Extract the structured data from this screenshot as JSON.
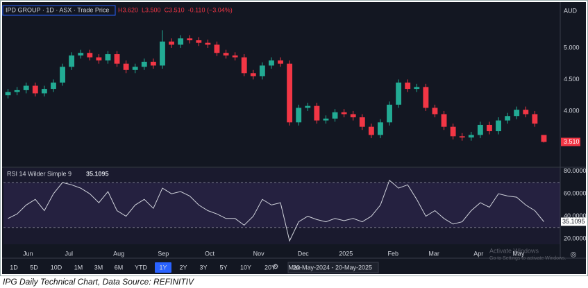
{
  "chart_data": [
    {
      "type": "candlestick",
      "title": "IPD GROUP · 1D · ASX · Trade Price",
      "ohlc_labels": [
        "H3.620",
        "L3.500",
        "C3.510",
        "-0.110 (−3.04%)"
      ],
      "currency": "AUD",
      "last_label": "3.510",
      "up_color": "#22ab94",
      "down_color": "#f23645",
      "open": [
        4.25,
        4.3,
        4.33,
        4.4,
        4.28,
        4.35,
        4.45,
        4.7,
        4.88,
        4.92,
        4.85,
        4.8,
        4.9,
        4.75,
        4.65,
        4.7,
        4.78,
        4.72,
        5.1,
        5.05,
        5.15,
        5.12,
        5.08,
        5.05,
        4.92,
        4.88,
        4.85,
        4.6,
        4.55,
        4.72,
        4.8,
        4.75,
        3.82,
        4.05,
        4.08,
        3.85,
        3.88,
        3.98,
        3.95,
        3.9,
        3.75,
        3.62,
        3.82,
        4.1,
        4.45,
        4.35,
        4.38,
        4.05,
        3.95,
        3.75,
        3.6,
        3.58,
        3.62,
        3.78,
        3.68,
        3.85,
        3.92,
        4.02,
        3.95,
        3.62
      ],
      "high": [
        4.35,
        4.38,
        4.45,
        4.45,
        4.4,
        4.5,
        4.75,
        4.93,
        4.97,
        4.97,
        4.9,
        4.95,
        4.95,
        4.8,
        4.75,
        4.83,
        4.83,
        5.28,
        5.15,
        5.2,
        5.2,
        5.17,
        5.13,
        5.1,
        4.97,
        4.93,
        4.9,
        4.65,
        4.77,
        4.85,
        4.85,
        4.8,
        4.1,
        4.13,
        4.13,
        3.93,
        4.03,
        4.03,
        4.0,
        3.95,
        3.8,
        3.87,
        4.15,
        4.5,
        4.5,
        4.43,
        4.43,
        4.1,
        4.0,
        3.8,
        3.65,
        3.67,
        3.83,
        3.83,
        3.9,
        3.97,
        4.07,
        4.07,
        4.0,
        3.62
      ],
      "low": [
        4.2,
        4.25,
        4.28,
        4.23,
        4.23,
        4.3,
        4.4,
        4.65,
        4.83,
        4.8,
        4.75,
        4.75,
        4.7,
        4.6,
        4.6,
        4.65,
        4.67,
        4.67,
        5.0,
        5.0,
        5.07,
        5.03,
        5.0,
        4.87,
        4.83,
        4.8,
        4.55,
        4.5,
        4.5,
        4.67,
        4.7,
        3.77,
        3.77,
        4.0,
        3.8,
        3.8,
        3.83,
        3.9,
        3.85,
        3.7,
        3.57,
        3.57,
        3.77,
        4.05,
        4.3,
        4.3,
        4.0,
        3.9,
        3.7,
        3.55,
        3.53,
        3.53,
        3.57,
        3.63,
        3.63,
        3.8,
        3.87,
        3.9,
        3.75,
        3.5
      ],
      "close": [
        4.3,
        4.33,
        4.4,
        4.28,
        4.35,
        4.45,
        4.7,
        4.88,
        4.92,
        4.85,
        4.8,
        4.9,
        4.75,
        4.65,
        4.7,
        4.78,
        4.72,
        5.1,
        5.05,
        5.15,
        5.12,
        5.08,
        5.05,
        4.92,
        4.88,
        4.85,
        4.6,
        4.55,
        4.72,
        4.8,
        4.75,
        3.82,
        4.05,
        4.08,
        3.85,
        3.88,
        3.98,
        3.95,
        3.9,
        3.75,
        3.62,
        3.82,
        4.1,
        4.45,
        4.35,
        4.38,
        4.05,
        3.95,
        3.75,
        3.6,
        3.58,
        3.62,
        3.78,
        3.68,
        3.85,
        3.92,
        4.02,
        3.95,
        3.8,
        3.51
      ],
      "ylim": [
        3.12,
        5.67
      ],
      "yticks": [
        {
          "value": 4,
          "label": "4.000"
        },
        {
          "value": 4.5,
          "label": "4.500"
        },
        {
          "value": 5,
          "label": "5.000"
        }
      ],
      "xlim": [
        -0.5,
        59.5
      ],
      "xticks": [
        {
          "value": 2.2,
          "label": "Jun"
        },
        {
          "value": 6.7,
          "label": "Jul"
        },
        {
          "value": 12.2,
          "label": "Aug"
        },
        {
          "value": 17.1,
          "label": "Sep"
        },
        {
          "value": 22.2,
          "label": "Oct"
        },
        {
          "value": 27.6,
          "label": "Nov"
        },
        {
          "value": 32.5,
          "label": "Dec"
        },
        {
          "value": 37.2,
          "label": "2025"
        },
        {
          "value": 42.4,
          "label": "Feb"
        },
        {
          "value": 46.9,
          "label": "Mar"
        },
        {
          "value": 51.8,
          "label": "Apr"
        },
        {
          "value": 56.2,
          "label": "May"
        }
      ]
    },
    {
      "type": "line",
      "title": "RSI 14 Wilder Simple 9",
      "last_label": "35.1095",
      "color": "#d1d4dc",
      "values": [
        38,
        42,
        50,
        55,
        45,
        60,
        70,
        68,
        65,
        60,
        52,
        62,
        45,
        40,
        50,
        55,
        47,
        65,
        60,
        62,
        58,
        50,
        45,
        42,
        38,
        38,
        32,
        40,
        55,
        50,
        52,
        18,
        35,
        40,
        37,
        35,
        38,
        36,
        38,
        35,
        40,
        50,
        72,
        65,
        68,
        55,
        40,
        45,
        38,
        33,
        35,
        45,
        52,
        48,
        60,
        58,
        57,
        50,
        45,
        35.1095
      ],
      "band": [
        30,
        70
      ],
      "ylim": [
        15,
        83
      ],
      "yticks": [
        {
          "value": 20,
          "label": "20.0000"
        },
        {
          "value": 40,
          "label": "40.0000"
        },
        {
          "value": 60,
          "label": "60.0000"
        },
        {
          "value": 80,
          "label": "80.0000"
        }
      ]
    }
  ],
  "toolbar": {
    "ranges": [
      "1D",
      "5D",
      "10D",
      "1M",
      "3M",
      "6M",
      "YTD",
      "1Y",
      "2Y",
      "3Y",
      "5Y",
      "10Y",
      "20Y",
      "Max"
    ],
    "selected": "1Y",
    "date_range": "20-May-2024 - 20-May-2025"
  },
  "watermark": [
    "Activate Windows",
    "Go to Settings to activate Windows."
  ],
  "caption": "IPG Daily Technical Chart, Data Source: REFINITIV"
}
